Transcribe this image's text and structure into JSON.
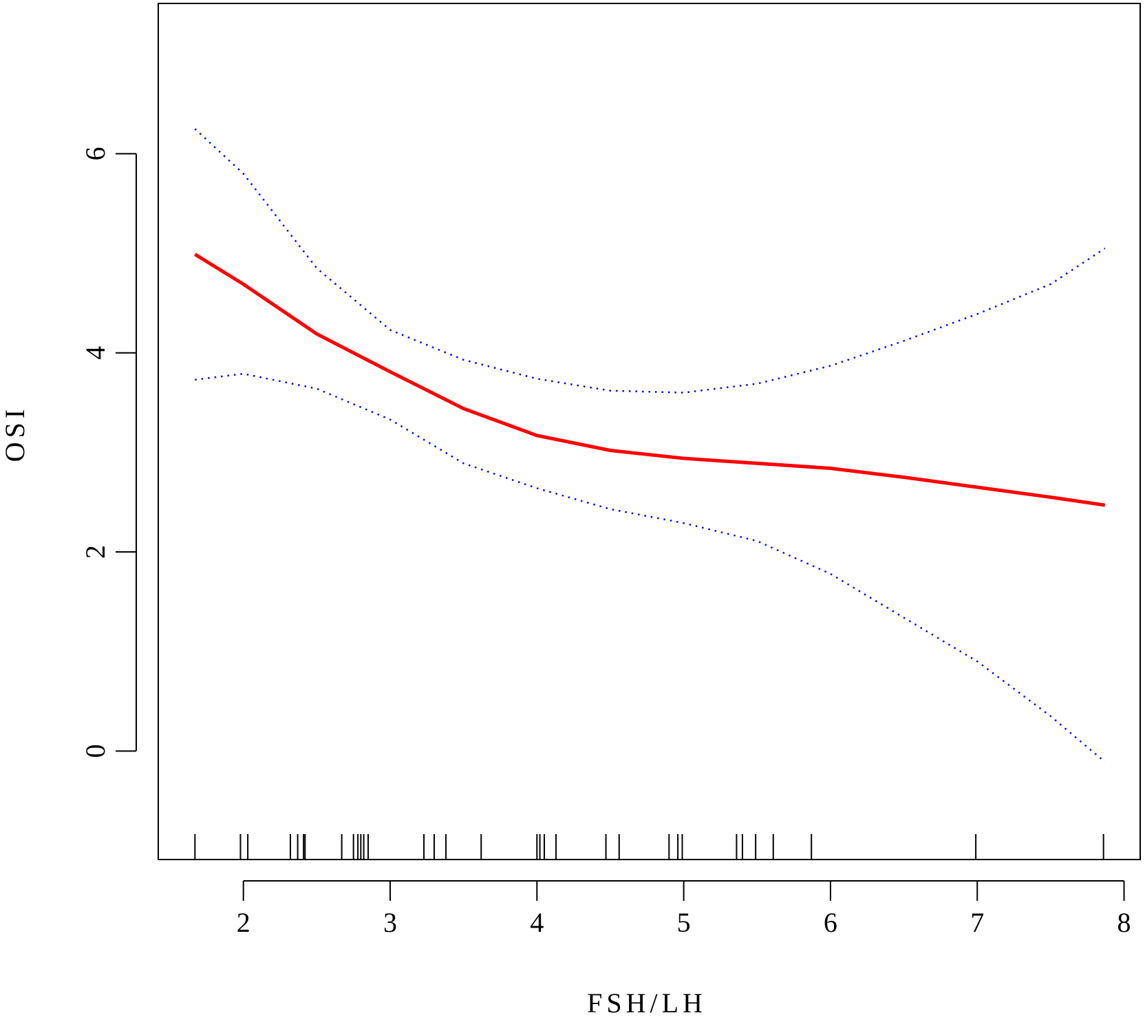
{
  "chart_data": {
    "type": "line",
    "x_label": "FSH/LH",
    "y_label": "OSI",
    "x": [
      1.67,
      2,
      2.5,
      3,
      3.5,
      4,
      4.5,
      5,
      5.5,
      6,
      6.5,
      7,
      7.5,
      7.87
    ],
    "series": [
      {
        "name": "fit",
        "color": "#ff0000",
        "style": "solid",
        "values": [
          4.99,
          4.69,
          4.19,
          3.81,
          3.44,
          3.17,
          3.02,
          2.94,
          2.89,
          2.84,
          2.75,
          2.65,
          2.55,
          2.47
        ]
      },
      {
        "name": "upper",
        "color": "#0000ff",
        "style": "dotted",
        "values": [
          6.25,
          5.8,
          4.85,
          4.23,
          3.93,
          3.74,
          3.62,
          3.6,
          3.69,
          3.87,
          4.12,
          4.39,
          4.69,
          5.05
        ]
      },
      {
        "name": "lower",
        "color": "#0000ff",
        "style": "dotted",
        "values": [
          3.73,
          3.79,
          3.64,
          3.33,
          2.89,
          2.64,
          2.43,
          2.29,
          2.11,
          1.78,
          1.34,
          0.9,
          0.35,
          -0.11
        ]
      }
    ],
    "rug": [
      1.67,
      1.98,
      2.03,
      2.32,
      2.37,
      2.41,
      2.42,
      2.67,
      2.75,
      2.78,
      2.8,
      2.82,
      2.85,
      3.23,
      3.3,
      3.38,
      3.62,
      4.0,
      4.02,
      4.05,
      4.13,
      4.47,
      4.56,
      4.9,
      4.96,
      4.99,
      5.36,
      5.4,
      5.49,
      5.61,
      5.87,
      6.99,
      7.86
    ],
    "xlim": [
      1.42,
      8.11
    ],
    "ylim": [
      -1.09,
      7.51
    ],
    "xticks": [
      2,
      3,
      4,
      5,
      6,
      7,
      8
    ],
    "yticks": [
      0,
      2,
      4,
      6
    ]
  }
}
